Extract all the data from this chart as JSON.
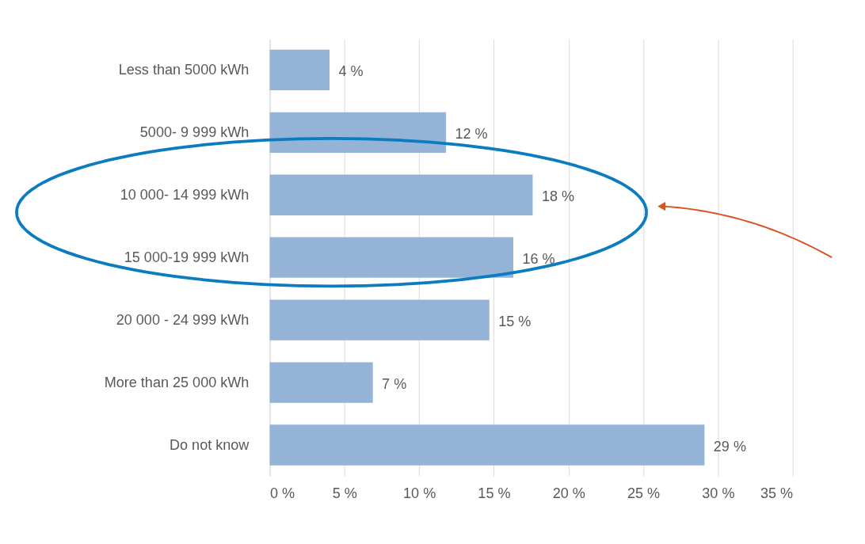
{
  "chart_data": {
    "type": "bar",
    "orientation": "horizontal",
    "categories": [
      "Less than 5000 kWh",
      "5000- 9 999 kWh",
      "10 000- 14 999 kWh",
      "15 000-19 999 kWh",
      "20 000 - 24 999 kWh",
      "More than 25 000 kWh",
      "Do not know"
    ],
    "values": [
      4,
      11.8,
      17.6,
      16.3,
      14.7,
      6.9,
      29.1
    ],
    "value_labels": [
      "4 %",
      "12 %",
      "18 %",
      "16 %",
      "15 %",
      "7 %",
      "29 %"
    ],
    "color": "#95b3d7",
    "xlim": [
      0,
      35
    ],
    "xticks": [
      {
        "value": 0,
        "label": "0 %"
      },
      {
        "value": 5,
        "label": "5 %"
      },
      {
        "value": 10,
        "label": "10 %"
      },
      {
        "value": 15,
        "label": "15 %"
      },
      {
        "value": 20,
        "label": "20 %"
      },
      {
        "value": 25,
        "label": "25 %"
      },
      {
        "value": 30,
        "label": "30 %"
      },
      {
        "value": 35,
        "label": "35 %"
      }
    ],
    "grid": "x"
  }
}
